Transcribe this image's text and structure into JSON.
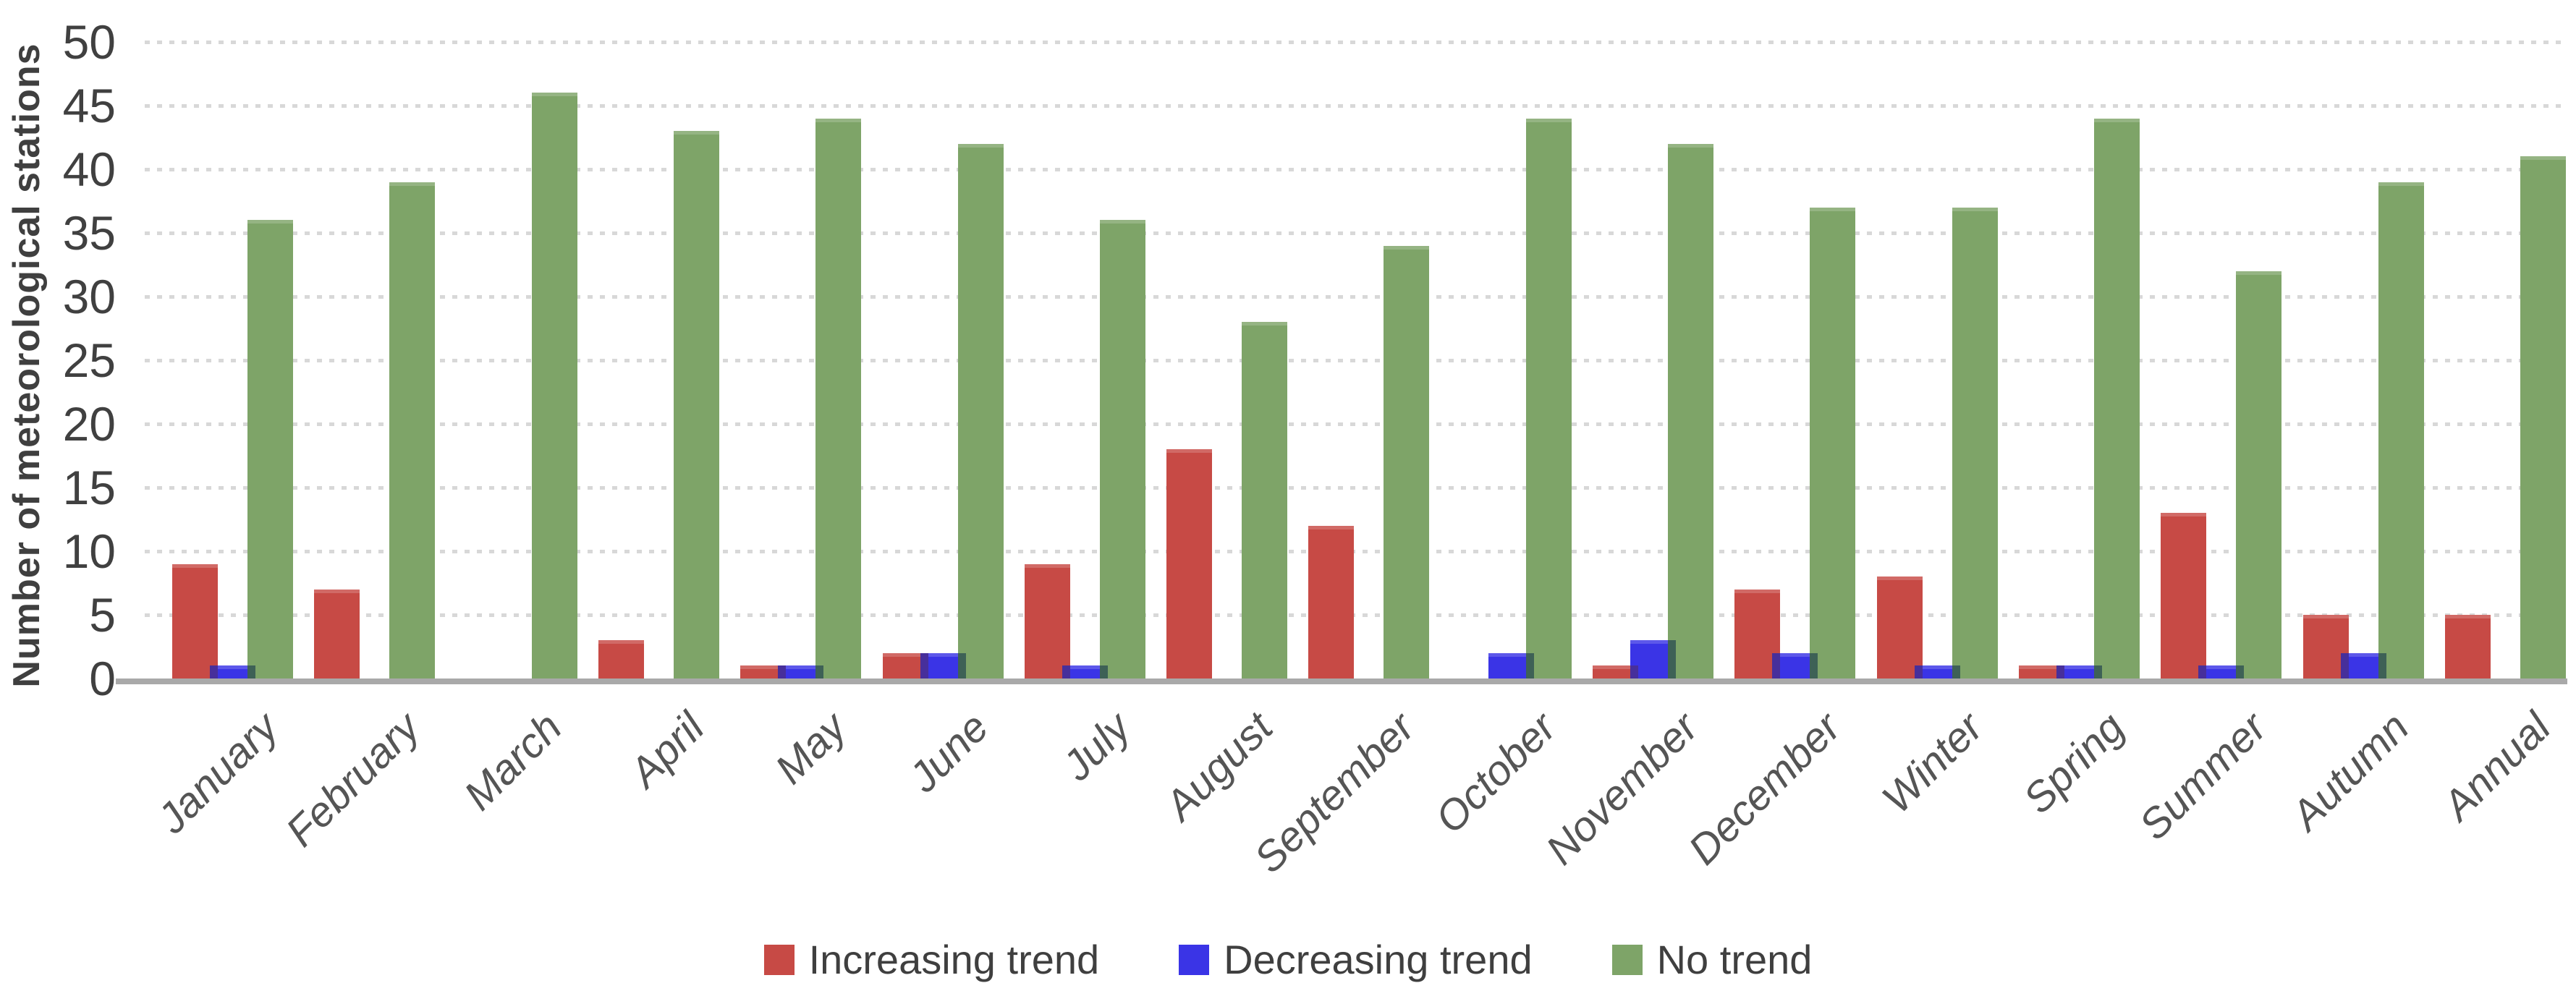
{
  "chart_data": {
    "type": "bar",
    "title": "",
    "ylabel": "Number of meteorological stations",
    "xlabel": "",
    "ylim": [
      0,
      50
    ],
    "ytick_step": 5,
    "y_ticks": [
      0,
      5,
      10,
      15,
      20,
      25,
      30,
      35,
      40,
      45,
      50
    ],
    "grid": "dotted-horizontal",
    "legend_position": "bottom-center",
    "categories": [
      "January",
      "February",
      "March",
      "April",
      "May",
      "June",
      "July",
      "August",
      "September",
      "October",
      "November",
      "December",
      "Winter",
      "Spring",
      "Summer",
      "Autumn",
      "Annual"
    ],
    "series": [
      {
        "key": "increasing",
        "name": "Increasing trend",
        "color": "#c74a45",
        "values": [
          9,
          7,
          0,
          3,
          1,
          2,
          9,
          18,
          12,
          0,
          1,
          7,
          8,
          1,
          13,
          5,
          5
        ]
      },
      {
        "key": "decreasing",
        "name": "Decreasing trend",
        "color": "#3a34e6",
        "values": [
          1,
          0,
          0,
          0,
          1,
          2,
          1,
          0,
          0,
          2,
          3,
          2,
          1,
          1,
          1,
          2,
          0
        ]
      },
      {
        "key": "none",
        "name": "No trend",
        "color": "#7ea468",
        "values": [
          36,
          39,
          46,
          43,
          44,
          42,
          36,
          28,
          34,
          44,
          42,
          37,
          37,
          44,
          32,
          39,
          41
        ]
      }
    ],
    "overlap_colors": {
      "increasing_decreasing": "#472f9b",
      "decreasing_none": "#3e6156"
    },
    "axis_color": "#a9a9a9",
    "gridline_color": "#d8d8d8",
    "tick_text_color": "#404040",
    "category_text_color": "#555555"
  }
}
